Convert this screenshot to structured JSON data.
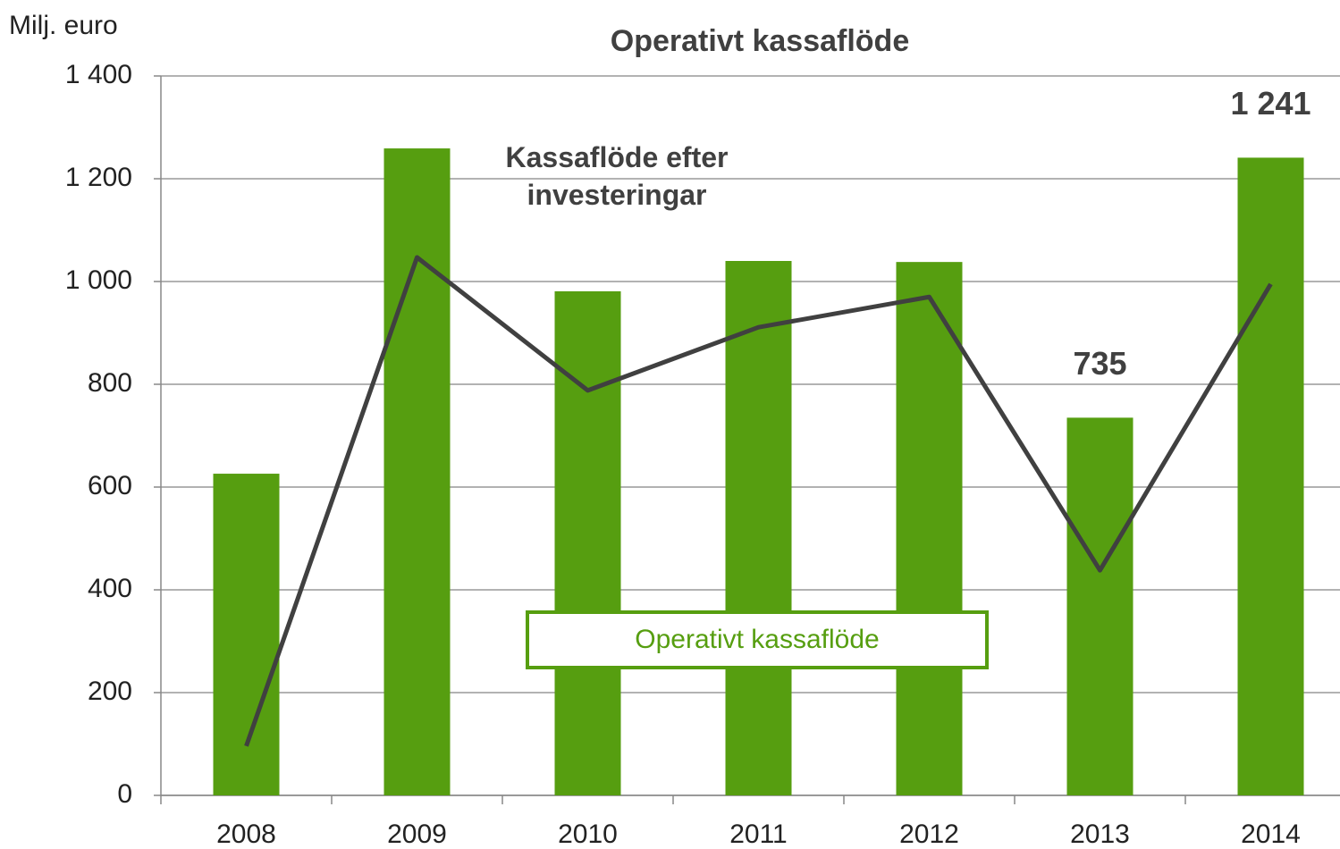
{
  "chart_data": {
    "type": "bar",
    "title": "Operativt kassaflöde",
    "y_label": "Milj. euro",
    "categories": [
      "2008",
      "2009",
      "2010",
      "2011",
      "2012",
      "2013",
      "2014"
    ],
    "series": [
      {
        "name": "Operativt kassaflöde",
        "color": "#569e10",
        "values": [
          626,
          1259,
          981,
          1040,
          1038,
          735,
          1241
        ],
        "value_labels": [
          null,
          null,
          null,
          null,
          null,
          "735",
          "1 241"
        ]
      },
      {
        "name": "Kassaflöde efter investeringar",
        "type": "line",
        "color": "#404040",
        "values": [
          96,
          1047,
          788,
          911,
          970,
          438,
          995
        ]
      }
    ],
    "ylim": [
      0,
      1400
    ],
    "yticks": [
      0,
      200,
      400,
      600,
      800,
      {
        "value": 1000,
        "label": "1 000"
      },
      {
        "value": 1200,
        "label": "1 200"
      },
      {
        "value": 1400,
        "label": "1 400"
      }
    ],
    "grid": true
  }
}
